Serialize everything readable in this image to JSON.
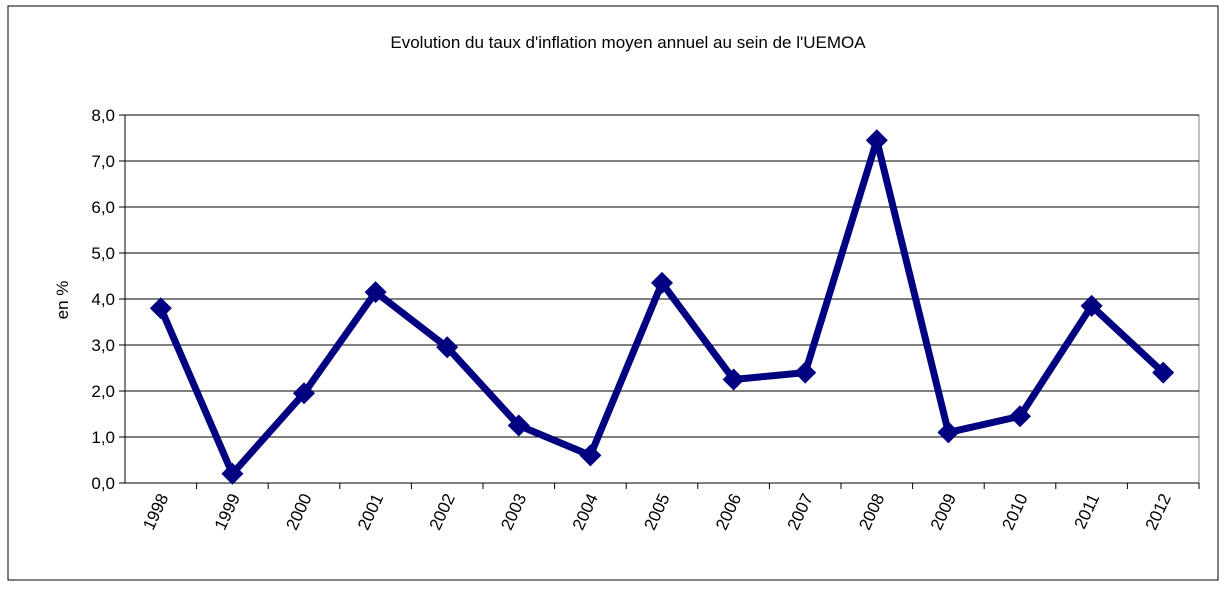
{
  "chart_data": {
    "type": "line",
    "title": "Evolution du taux d'inflation moyen annuel au sein de l'UEMOA",
    "y_label": "en %",
    "categories": [
      "1998",
      "1999",
      "2000",
      "2001",
      "2002",
      "2003",
      "2004",
      "2005",
      "2006",
      "2007",
      "2008",
      "2009",
      "2010",
      "2011",
      "2012"
    ],
    "series": [
      {
        "name": "Taux d'inflation",
        "color": "#000080",
        "values": [
          3.8,
          0.2,
          1.95,
          4.15,
          2.95,
          1.25,
          0.6,
          4.35,
          2.25,
          2.4,
          7.45,
          1.1,
          1.45,
          3.85,
          2.4
        ]
      }
    ],
    "ylim": [
      0,
      8
    ],
    "yticks": [
      {
        "value": 0,
        "label": "0,0"
      },
      {
        "value": 1,
        "label": "1,0"
      },
      {
        "value": 2,
        "label": "2,0"
      },
      {
        "value": 3,
        "label": "3,0"
      },
      {
        "value": 4,
        "label": "4,0"
      },
      {
        "value": 5,
        "label": "5,0"
      },
      {
        "value": 6,
        "label": "6,0"
      },
      {
        "value": 7,
        "label": "7,0"
      },
      {
        "value": 8,
        "label": "8,0"
      }
    ],
    "grid": true
  }
}
